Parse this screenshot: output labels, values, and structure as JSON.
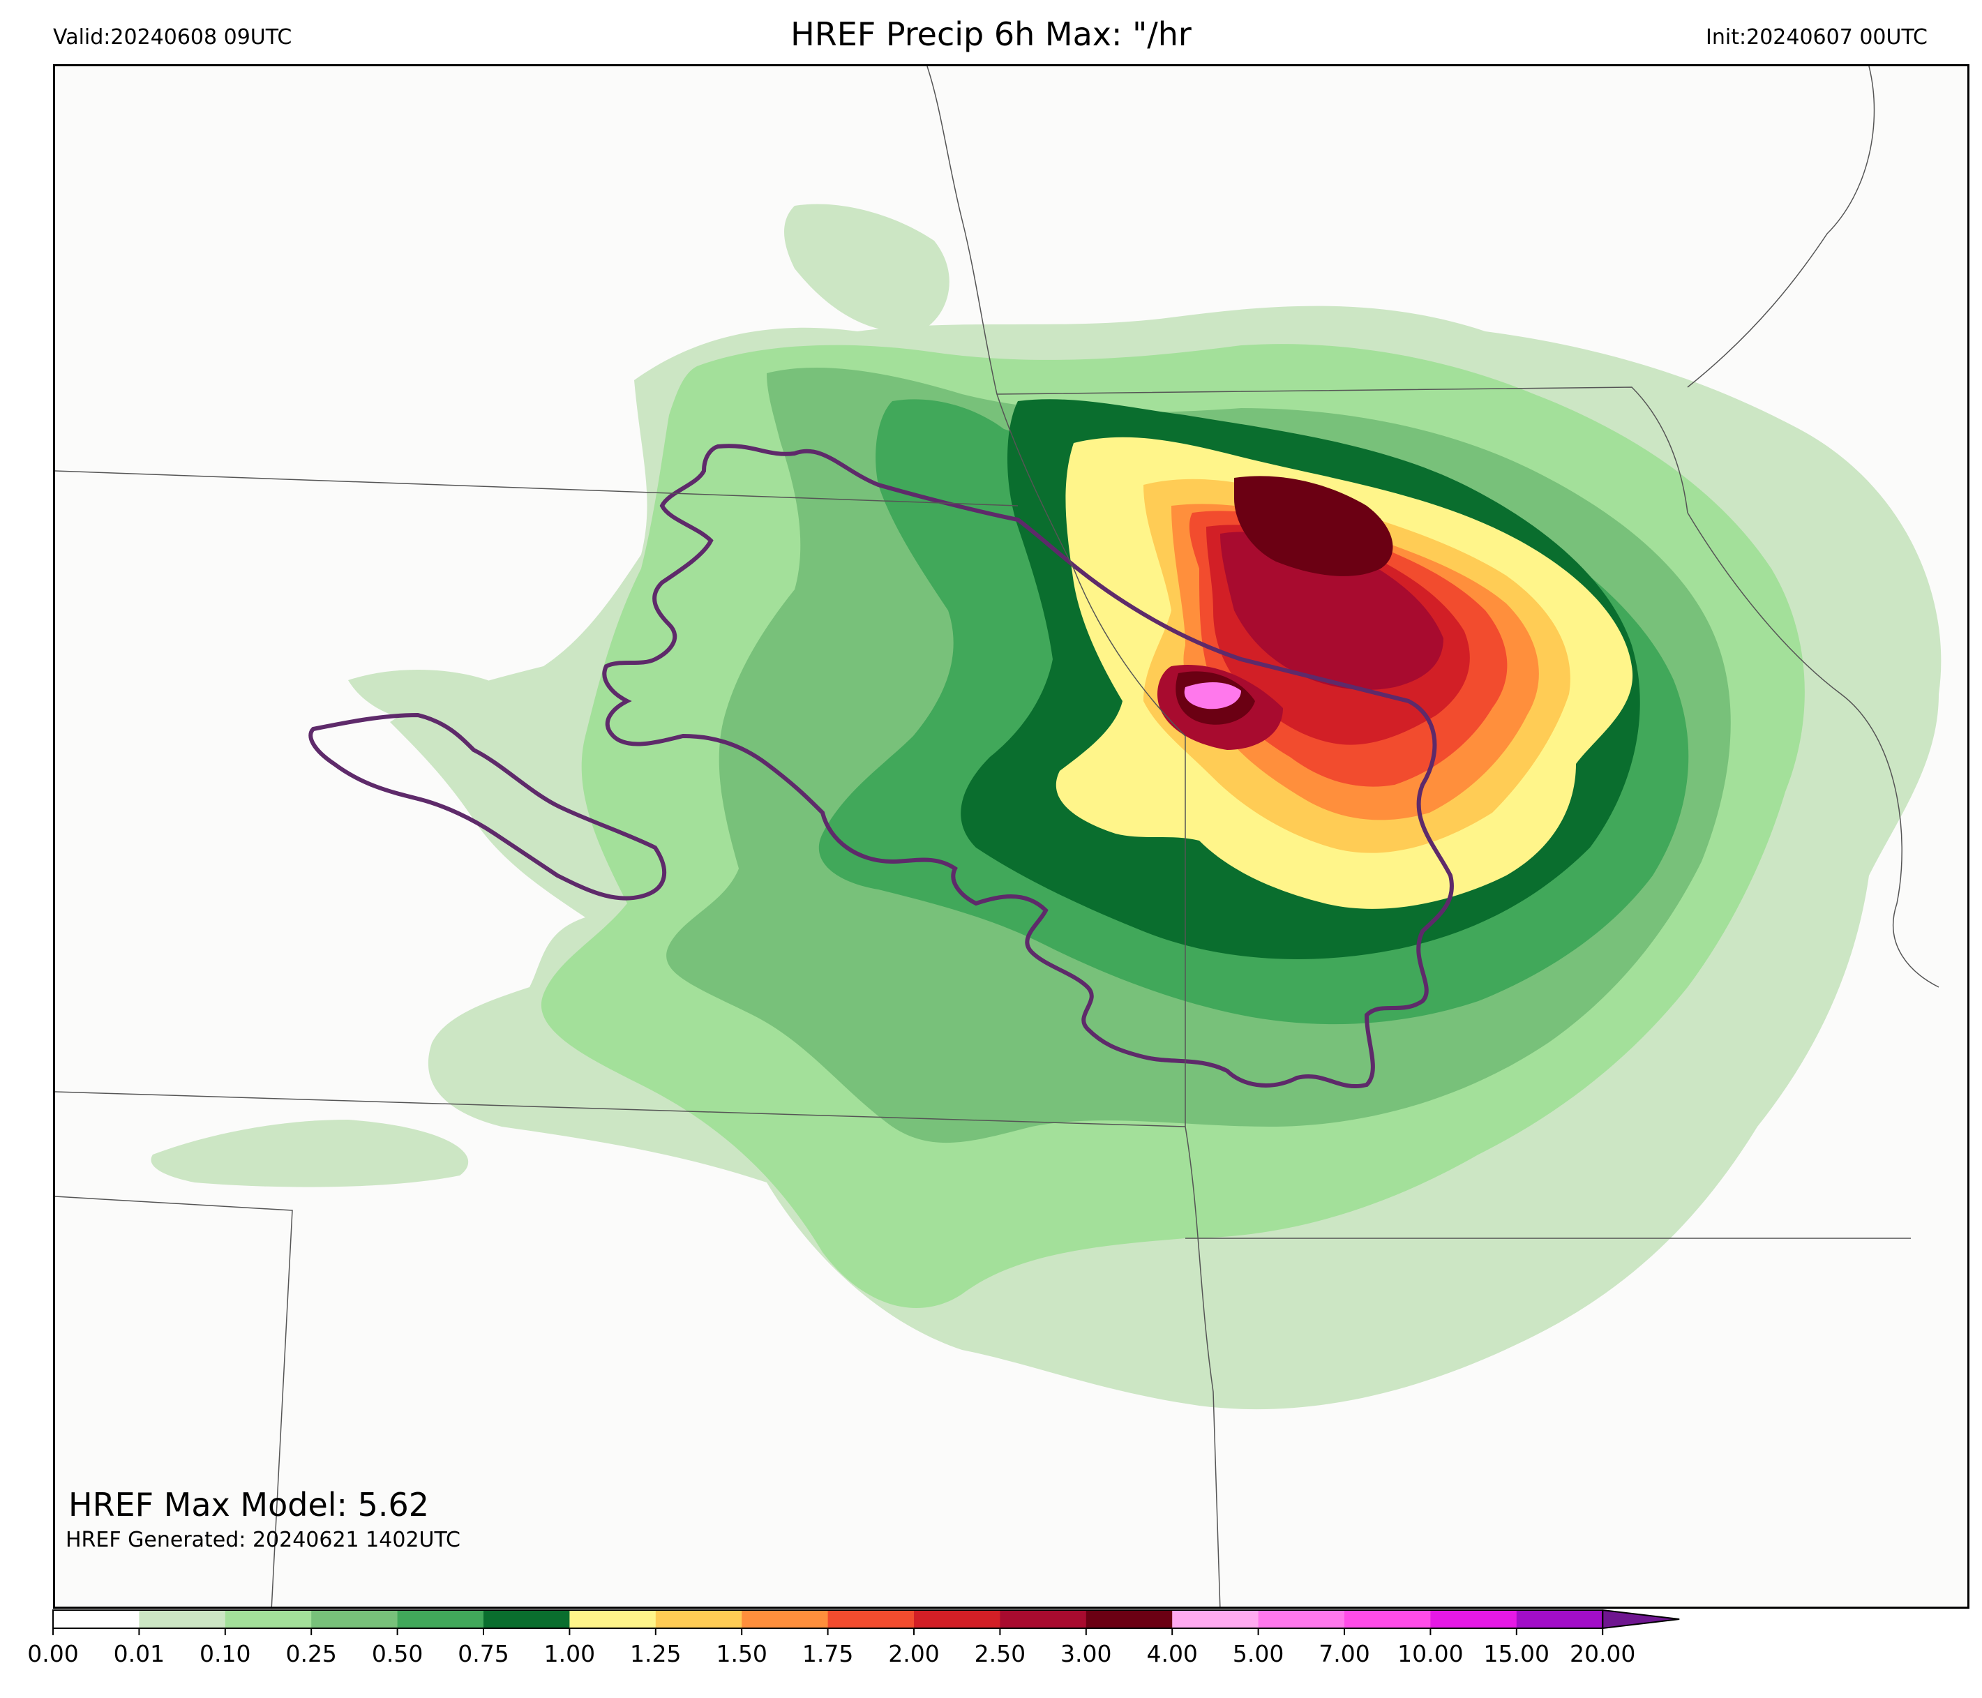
{
  "header": {
    "valid": "Valid:20240608 09UTC",
    "title": "HREF Precip 6h Max: \"/hr",
    "init": "Init:20240607 00UTC"
  },
  "annotations": {
    "max_model": "HREF Max Model: 5.62",
    "generated": "HREF Generated: 20240621 1402UTC"
  },
  "colorbar": {
    "levels": [
      "0.00",
      "0.01",
      "0.10",
      "0.25",
      "0.50",
      "0.75",
      "1.00",
      "1.25",
      "1.50",
      "1.75",
      "2.00",
      "2.50",
      "3.00",
      "4.00",
      "5.00",
      "7.00",
      "10.00",
      "15.00",
      "20.00"
    ],
    "colors": [
      "#ffffff",
      "#cce6c4",
      "#a3e09a",
      "#78c17a",
      "#41a85a",
      "#0a6e2e",
      "#fff58a",
      "#ffcc55",
      "#ff8f3c",
      "#f24c2e",
      "#d21f26",
      "#a80b2f",
      "#6b0013",
      "#ffaaf0",
      "#ff78ec",
      "#ff4ce8",
      "#e619e6",
      "#a20ec8"
    ],
    "extend_color": "#6f1690"
  },
  "legend": {
    "contour_color": "#5e2a6a"
  }
}
